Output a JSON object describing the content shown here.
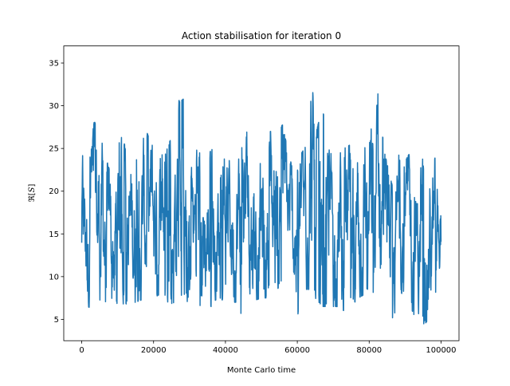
{
  "chart_data": {
    "type": "line",
    "title": "Action stabilisation for iteration 0",
    "xlabel": "Monte Carlo time",
    "ylabel_text": "ℜ[",
    "ylabel_var": "S",
    "ylabel_close": "]",
    "xlim": [
      -5000,
      105000
    ],
    "ylim": [
      2.5,
      37
    ],
    "xticks": [
      0,
      20000,
      40000,
      60000,
      80000,
      100000
    ],
    "xtick_labels": [
      "0",
      "20000",
      "40000",
      "60000",
      "80000",
      "100000"
    ],
    "yticks": [
      5,
      10,
      15,
      20,
      25,
      30,
      35
    ],
    "ytick_labels": [
      "5",
      "10",
      "15",
      "20",
      "25",
      "30",
      "35"
    ],
    "grid": false,
    "series": [
      {
        "color": "#1f77b4",
        "points": 1600,
        "x_range": [
          0,
          100000
        ],
        "mean": 15.5,
        "envelope": [
          [
            0,
            8.5,
            24.5
          ],
          [
            1500,
            6.5,
            22.5
          ],
          [
            3500,
            6.2,
            28.2
          ],
          [
            5500,
            6.0,
            26.0
          ],
          [
            8000,
            7.0,
            22.0
          ],
          [
            10500,
            6.8,
            26.8
          ],
          [
            13000,
            6.8,
            24.5
          ],
          [
            15000,
            7.0,
            24.0
          ],
          [
            18000,
            7.5,
            27.0
          ],
          [
            20000,
            7.5,
            25.0
          ],
          [
            22000,
            8.0,
            24.5
          ],
          [
            24000,
            7.0,
            25.0
          ],
          [
            27000,
            6.5,
            30.6
          ],
          [
            28500,
            6.5,
            30.8
          ],
          [
            30000,
            7.5,
            22.0
          ],
          [
            32500,
            6.8,
            25.5
          ],
          [
            34500,
            5.0,
            24.0
          ],
          [
            36500,
            7.0,
            25.0
          ],
          [
            38000,
            7.5,
            22.0
          ],
          [
            40500,
            7.0,
            25.0
          ],
          [
            43000,
            7.0,
            26.0
          ],
          [
            44500,
            5.0,
            25.5
          ],
          [
            46000,
            8.5,
            27.0
          ],
          [
            48000,
            7.2,
            25.0
          ],
          [
            50000,
            7.5,
            24.5
          ],
          [
            52000,
            7.5,
            26.0
          ],
          [
            54000,
            8.0,
            30.0
          ],
          [
            55000,
            9.0,
            29.5
          ],
          [
            57000,
            8.0,
            25.5
          ],
          [
            59000,
            7.5,
            22.0
          ],
          [
            60500,
            4.8,
            24.0
          ],
          [
            62000,
            8.5,
            25.0
          ],
          [
            63800,
            8.5,
            35.3
          ],
          [
            65000,
            7.5,
            26.5
          ],
          [
            67000,
            6.5,
            29.8
          ],
          [
            69000,
            6.5,
            24.5
          ],
          [
            71000,
            6.5,
            24.0
          ],
          [
            73000,
            6.0,
            25.0
          ],
          [
            75000,
            6.5,
            25.5
          ],
          [
            77000,
            7.5,
            24.5
          ],
          [
            79000,
            8.0,
            26.5
          ],
          [
            81000,
            8.0,
            27.5
          ],
          [
            82800,
            7.5,
            33.3
          ],
          [
            84000,
            7.0,
            25.0
          ],
          [
            86500,
            4.5,
            20.5
          ],
          [
            88000,
            7.5,
            24.5
          ],
          [
            90000,
            8.5,
            23.5
          ],
          [
            92000,
            6.0,
            25.0
          ],
          [
            93500,
            4.5,
            21.0
          ],
          [
            95000,
            4.2,
            24.0
          ],
          [
            96500,
            5.0,
            22.5
          ],
          [
            98000,
            5.5,
            23.5
          ],
          [
            100000,
            12.5,
            25.9
          ]
        ]
      }
    ]
  }
}
